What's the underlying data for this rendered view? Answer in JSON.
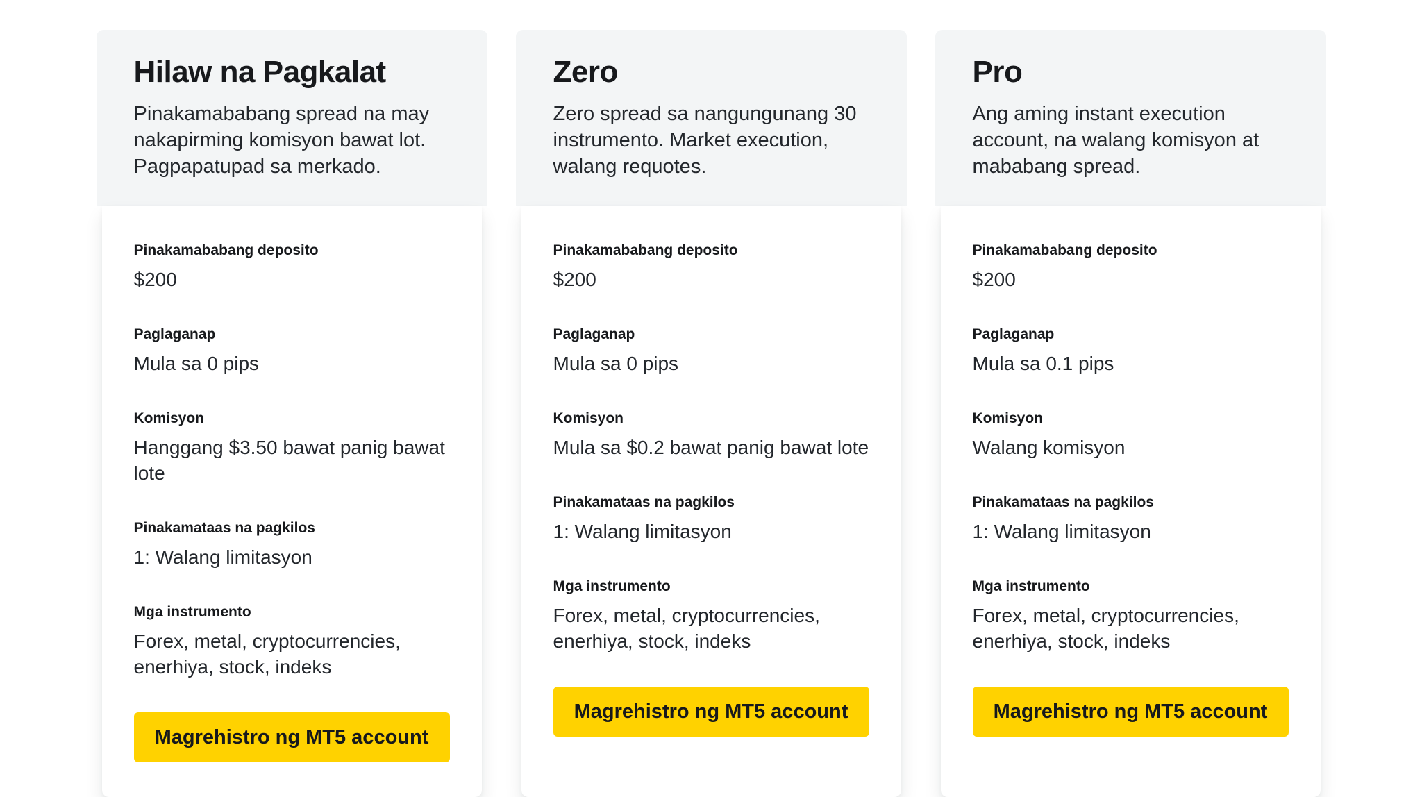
{
  "colors": {
    "page_bg": "#ffffff",
    "card_header_bg": "#f3f5f6",
    "card_body_bg": "#ffffff",
    "title_color": "#17191c",
    "text_color": "#23272c",
    "button_bg": "#ffd200",
    "button_text": "#17191c"
  },
  "cards": [
    {
      "title": "Hilaw na Pagkalat",
      "description": "Pinakamababang spread na may nakapirming komisyon bawat lot. Pagpapatupad sa merkado.",
      "features": [
        {
          "label": "Pinakamababang deposito",
          "value": "$200"
        },
        {
          "label": "Paglaganap",
          "value": "Mula sa 0 pips"
        },
        {
          "label": "Komisyon",
          "value": "Hanggang $3.50 bawat panig bawat lote"
        },
        {
          "label": "Pinakamataas na pagkilos",
          "value": "1: Walang limitasyon"
        },
        {
          "label": "Mga instrumento",
          "value": "Forex, metal, cryptocurrencies, enerhiya, stock, indeks"
        }
      ],
      "button_label": "Magrehistro ng MT5 account"
    },
    {
      "title": "Zero",
      "description": "Zero spread sa nangungunang 30 instrumento. Market execution, walang requotes.",
      "features": [
        {
          "label": "Pinakamababang deposito",
          "value": "$200"
        },
        {
          "label": "Paglaganap",
          "value": "Mula sa 0 pips"
        },
        {
          "label": "Komisyon",
          "value": "Mula sa $0.2 bawat panig bawat lote"
        },
        {
          "label": "Pinakamataas na pagkilos",
          "value": "1: Walang limitasyon"
        },
        {
          "label": "Mga instrumento",
          "value": "Forex, metal, cryptocurrencies, enerhiya, stock, indeks"
        }
      ],
      "button_label": "Magrehistro ng MT5 account"
    },
    {
      "title": "Pro",
      "description": "Ang aming instant execution account, na walang komisyon at mababang spread.",
      "features": [
        {
          "label": "Pinakamababang deposito",
          "value": "$200"
        },
        {
          "label": "Paglaganap",
          "value": "Mula sa 0.1 pips"
        },
        {
          "label": "Komisyon",
          "value": "Walang komisyon"
        },
        {
          "label": "Pinakamataas na pagkilos",
          "value": "1: Walang limitasyon"
        },
        {
          "label": "Mga instrumento",
          "value": "Forex, metal, cryptocurrencies, enerhiya, stock, indeks"
        }
      ],
      "button_label": "Magrehistro ng MT5 account"
    }
  ]
}
